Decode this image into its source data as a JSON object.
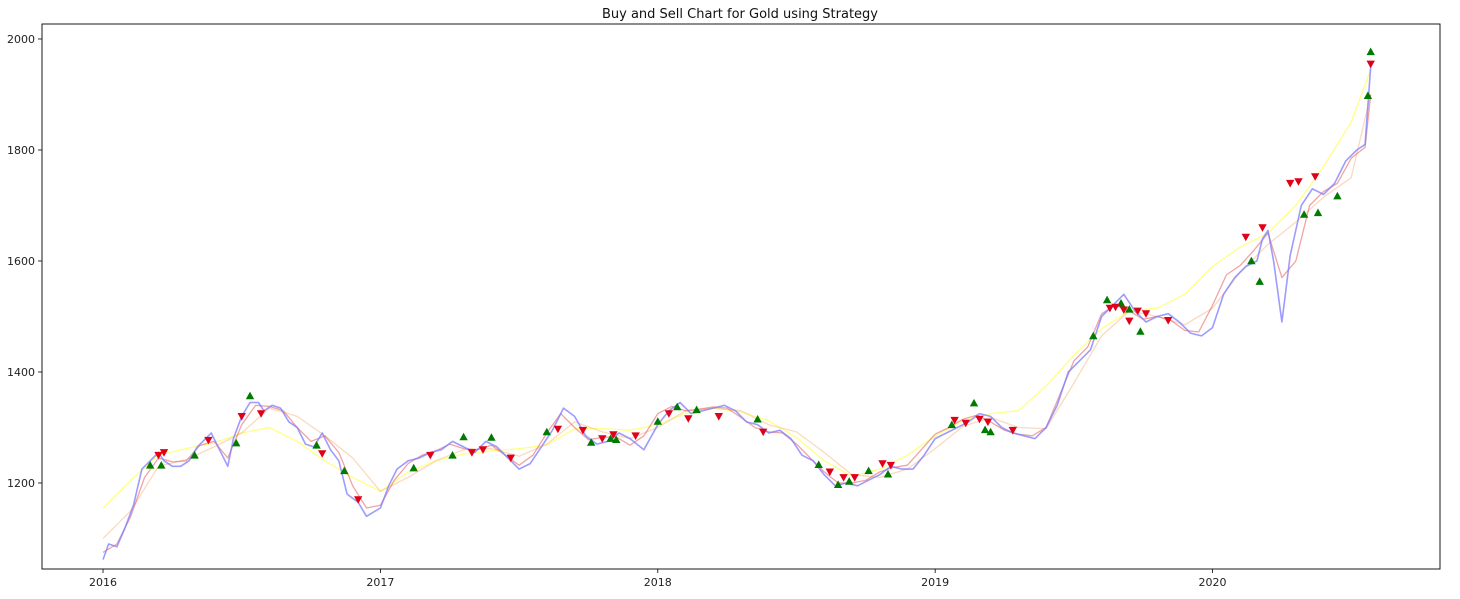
{
  "chart_data": {
    "type": "line",
    "title": "Buy and Sell Chart for Gold using Strategy",
    "xlabel": "",
    "ylabel": "",
    "xlim": [
      2015.78,
      2020.82
    ],
    "ylim": [
      1045,
      2027
    ],
    "xticks": [
      {
        "value": 2016,
        "label": "2016"
      },
      {
        "value": 2017,
        "label": "2017"
      },
      {
        "value": 2018,
        "label": "2018"
      },
      {
        "value": 2019,
        "label": "2019"
      },
      {
        "value": 2020,
        "label": "2020"
      }
    ],
    "yticks": [
      {
        "value": 1200,
        "label": "1200"
      },
      {
        "value": 1400,
        "label": "1400"
      },
      {
        "value": 1600,
        "label": "1600"
      },
      {
        "value": 1800,
        "label": "1800"
      },
      {
        "value": 2000,
        "label": "2000"
      }
    ],
    "grid": false,
    "legend": "none",
    "series": [
      {
        "key": "price",
        "color": "#7b7bff",
        "opacity": 0.75,
        "width": 1.6,
        "x": [
          2016.0,
          2016.02,
          2016.05,
          2016.08,
          2016.11,
          2016.14,
          2016.17,
          2016.2,
          2016.22,
          2016.25,
          2016.28,
          2016.31,
          2016.34,
          2016.37,
          2016.39,
          2016.42,
          2016.45,
          2016.47,
          2016.5,
          2016.53,
          2016.56,
          2016.58,
          2016.61,
          2016.64,
          2016.67,
          2016.7,
          2016.73,
          2016.76,
          2016.79,
          2016.82,
          2016.85,
          2016.88,
          2016.92,
          2016.95,
          2017.0,
          2017.03,
          2017.06,
          2017.1,
          2017.14,
          2017.18,
          2017.22,
          2017.26,
          2017.3,
          2017.34,
          2017.38,
          2017.42,
          2017.46,
          2017.5,
          2017.54,
          2017.58,
          2017.62,
          2017.66,
          2017.7,
          2017.74,
          2017.78,
          2017.82,
          2017.86,
          2017.9,
          2017.95,
          2018.0,
          2018.04,
          2018.08,
          2018.12,
          2018.16,
          2018.2,
          2018.24,
          2018.28,
          2018.32,
          2018.36,
          2018.4,
          2018.44,
          2018.48,
          2018.52,
          2018.56,
          2018.6,
          2018.64,
          2018.68,
          2018.72,
          2018.76,
          2018.8,
          2018.84,
          2018.88,
          2018.92,
          2018.96,
          2019.0,
          2019.04,
          2019.08,
          2019.12,
          2019.16,
          2019.2,
          2019.24,
          2019.28,
          2019.32,
          2019.36,
          2019.4,
          2019.44,
          2019.48,
          2019.52,
          2019.56,
          2019.6,
          2019.64,
          2019.68,
          2019.72,
          2019.76,
          2019.8,
          2019.84,
          2019.88,
          2019.92,
          2019.96,
          2020.0,
          2020.04,
          2020.08,
          2020.12,
          2020.16,
          2020.18,
          2020.2,
          2020.22,
          2020.25,
          2020.28,
          2020.32,
          2020.36,
          2020.4,
          2020.44,
          2020.48,
          2020.52,
          2020.55,
          2020.57
        ],
        "y": [
          1062,
          1090,
          1085,
          1120,
          1160,
          1225,
          1240,
          1255,
          1240,
          1230,
          1230,
          1240,
          1265,
          1280,
          1290,
          1260,
          1230,
          1280,
          1320,
          1345,
          1345,
          1330,
          1340,
          1335,
          1310,
          1300,
          1270,
          1265,
          1290,
          1260,
          1240,
          1180,
          1165,
          1140,
          1155,
          1195,
          1225,
          1240,
          1245,
          1255,
          1260,
          1275,
          1265,
          1255,
          1275,
          1265,
          1245,
          1225,
          1235,
          1265,
          1295,
          1335,
          1320,
          1285,
          1270,
          1275,
          1290,
          1280,
          1260,
          1305,
          1330,
          1345,
          1325,
          1330,
          1335,
          1340,
          1330,
          1310,
          1305,
          1290,
          1295,
          1280,
          1250,
          1240,
          1215,
          1195,
          1200,
          1195,
          1205,
          1215,
          1230,
          1225,
          1225,
          1250,
          1280,
          1290,
          1300,
          1310,
          1325,
          1320,
          1300,
          1290,
          1285,
          1280,
          1300,
          1340,
          1400,
          1420,
          1440,
          1500,
          1520,
          1540,
          1510,
          1490,
          1500,
          1505,
          1490,
          1470,
          1465,
          1480,
          1540,
          1570,
          1590,
          1600,
          1640,
          1655,
          1600,
          1490,
          1610,
          1700,
          1730,
          1720,
          1740,
          1780,
          1800,
          1810,
          1950
        ]
      },
      {
        "key": "ma-short",
        "color": "#e24a4a",
        "opacity": 0.5,
        "width": 1.3,
        "x": [
          2016.0,
          2016.05,
          2016.1,
          2016.15,
          2016.2,
          2016.25,
          2016.3,
          2016.35,
          2016.4,
          2016.45,
          2016.5,
          2016.55,
          2016.6,
          2016.65,
          2016.7,
          2016.75,
          2016.8,
          2016.85,
          2016.9,
          2016.95,
          2017.0,
          2017.05,
          2017.1,
          2017.15,
          2017.2,
          2017.25,
          2017.3,
          2017.35,
          2017.4,
          2017.45,
          2017.5,
          2017.55,
          2017.6,
          2017.65,
          2017.7,
          2017.75,
          2017.8,
          2017.85,
          2017.9,
          2017.95,
          2018.0,
          2018.05,
          2018.1,
          2018.15,
          2018.2,
          2018.25,
          2018.3,
          2018.35,
          2018.4,
          2018.45,
          2018.5,
          2018.55,
          2018.6,
          2018.65,
          2018.7,
          2018.75,
          2018.8,
          2018.85,
          2018.9,
          2018.95,
          2019.0,
          2019.05,
          2019.1,
          2019.15,
          2019.2,
          2019.25,
          2019.3,
          2019.35,
          2019.4,
          2019.45,
          2019.5,
          2019.55,
          2019.6,
          2019.65,
          2019.7,
          2019.75,
          2019.8,
          2019.85,
          2019.9,
          2019.95,
          2020.0,
          2020.05,
          2020.1,
          2020.15,
          2020.2,
          2020.25,
          2020.3,
          2020.35,
          2020.4,
          2020.45,
          2020.5,
          2020.55,
          2020.57
        ],
        "y": [
          1075,
          1090,
          1140,
          1210,
          1245,
          1238,
          1240,
          1268,
          1275,
          1245,
          1305,
          1340,
          1338,
          1330,
          1300,
          1275,
          1285,
          1255,
          1195,
          1155,
          1160,
          1205,
          1235,
          1250,
          1258,
          1270,
          1262,
          1260,
          1268,
          1250,
          1232,
          1250,
          1290,
          1325,
          1300,
          1278,
          1282,
          1283,
          1268,
          1285,
          1325,
          1338,
          1330,
          1333,
          1337,
          1335,
          1318,
          1300,
          1292,
          1290,
          1270,
          1245,
          1220,
          1200,
          1200,
          1205,
          1220,
          1228,
          1232,
          1260,
          1288,
          1300,
          1315,
          1322,
          1310,
          1295,
          1288,
          1285,
          1300,
          1360,
          1420,
          1445,
          1505,
          1520,
          1510,
          1495,
          1500,
          1493,
          1475,
          1472,
          1520,
          1575,
          1592,
          1620,
          1650,
          1570,
          1600,
          1700,
          1725,
          1740,
          1785,
          1805,
          1900
        ]
      },
      {
        "key": "ma-medium",
        "color": "#f5a060",
        "opacity": 0.4,
        "width": 1.3,
        "x": [
          2016.0,
          2016.1,
          2016.2,
          2016.3,
          2016.4,
          2016.5,
          2016.6,
          2016.7,
          2016.8,
          2016.9,
          2017.0,
          2017.1,
          2017.2,
          2017.3,
          2017.4,
          2017.5,
          2017.6,
          2017.7,
          2017.8,
          2017.9,
          2018.0,
          2018.1,
          2018.2,
          2018.3,
          2018.4,
          2018.5,
          2018.6,
          2018.7,
          2018.8,
          2018.9,
          2019.0,
          2019.1,
          2019.2,
          2019.3,
          2019.4,
          2019.5,
          2019.6,
          2019.7,
          2019.8,
          2019.9,
          2020.0,
          2020.1,
          2020.2,
          2020.3,
          2020.4,
          2020.5,
          2020.57
        ],
        "y": [
          1100,
          1150,
          1230,
          1242,
          1265,
          1290,
          1335,
          1320,
          1285,
          1245,
          1185,
          1210,
          1240,
          1260,
          1262,
          1248,
          1270,
          1310,
          1292,
          1280,
          1300,
          1330,
          1335,
          1330,
          1305,
          1292,
          1255,
          1215,
          1210,
          1225,
          1262,
          1302,
          1318,
          1300,
          1298,
          1380,
          1465,
          1510,
          1500,
          1485,
          1515,
          1580,
          1630,
          1670,
          1715,
          1750,
          1900
        ]
      },
      {
        "key": "ma-long",
        "color": "#ffff70",
        "opacity": 0.85,
        "width": 1.3,
        "x": [
          2016.0,
          2016.1,
          2016.2,
          2016.3,
          2016.4,
          2016.5,
          2016.6,
          2016.7,
          2016.8,
          2016.9,
          2017.0,
          2017.1,
          2017.2,
          2017.3,
          2017.4,
          2017.5,
          2017.6,
          2017.7,
          2017.8,
          2017.9,
          2018.0,
          2018.1,
          2018.2,
          2018.3,
          2018.4,
          2018.5,
          2018.6,
          2018.7,
          2018.8,
          2018.9,
          2019.0,
          2019.1,
          2019.2,
          2019.3,
          2019.4,
          2019.5,
          2019.6,
          2019.7,
          2019.8,
          2019.9,
          2020.0,
          2020.1,
          2020.2,
          2020.3,
          2020.4,
          2020.5,
          2020.57
        ],
        "y": [
          1155,
          1205,
          1250,
          1262,
          1272,
          1290,
          1300,
          1275,
          1240,
          1210,
          1185,
          1220,
          1240,
          1252,
          1258,
          1262,
          1268,
          1298,
          1298,
          1295,
          1305,
          1325,
          1335,
          1328,
          1312,
          1282,
          1240,
          1212,
          1225,
          1250,
          1285,
          1312,
          1325,
          1330,
          1375,
          1430,
          1478,
          1510,
          1515,
          1540,
          1590,
          1625,
          1650,
          1700,
          1770,
          1850,
          1945
        ]
      },
      {
        "key": "buy-signals",
        "type": "scatter",
        "marker": "triangle-up",
        "color": "#007a00",
        "x": [
          2016.17,
          2016.21,
          2016.33,
          2016.48,
          2016.53,
          2016.77,
          2016.87,
          2017.12,
          2017.26,
          2017.3,
          2017.4,
          2017.6,
          2017.76,
          2017.83,
          2017.85,
          2018.0,
          2018.07,
          2018.14,
          2018.36,
          2018.58,
          2018.65,
          2018.69,
          2018.76,
          2018.83,
          2019.06,
          2019.14,
          2019.18,
          2019.2,
          2019.57,
          2019.62,
          2019.67,
          2019.7,
          2019.74,
          2020.14,
          2020.17,
          2020.33,
          2020.38,
          2020.45,
          2020.56,
          2020.57
        ],
        "y": [
          1232,
          1232,
          1250,
          1272,
          1357,
          1268,
          1222,
          1227,
          1250,
          1283,
          1282,
          1292,
          1273,
          1280,
          1278,
          1311,
          1337,
          1332,
          1315,
          1233,
          1197,
          1203,
          1222,
          1216,
          1305,
          1344,
          1296,
          1292,
          1465,
          1530,
          1524,
          1513,
          1473,
          1600,
          1563,
          1684,
          1687,
          1717,
          1898,
          1977
        ]
      },
      {
        "key": "sell-signals",
        "type": "scatter",
        "marker": "triangle-down",
        "color": "#e0001a",
        "x": [
          2016.2,
          2016.22,
          2016.38,
          2016.5,
          2016.57,
          2016.79,
          2016.92,
          2017.18,
          2017.33,
          2017.37,
          2017.47,
          2017.64,
          2017.73,
          2017.8,
          2017.84,
          2017.92,
          2018.04,
          2018.11,
          2018.22,
          2018.38,
          2018.62,
          2018.67,
          2018.71,
          2018.81,
          2018.84,
          2019.07,
          2019.11,
          2019.16,
          2019.19,
          2019.28,
          2019.63,
          2019.65,
          2019.68,
          2019.7,
          2019.73,
          2019.76,
          2019.84,
          2020.12,
          2020.18,
          2020.28,
          2020.31,
          2020.37,
          2020.57
        ],
        "y": [
          1250,
          1255,
          1277,
          1320,
          1325,
          1253,
          1170,
          1250,
          1255,
          1260,
          1245,
          1297,
          1295,
          1280,
          1287,
          1285,
          1325,
          1316,
          1320,
          1292,
          1220,
          1210,
          1210,
          1235,
          1232,
          1313,
          1308,
          1315,
          1310,
          1295,
          1515,
          1517,
          1512,
          1492,
          1510,
          1505,
          1493,
          1643,
          1660,
          1740,
          1743,
          1752,
          1955
        ]
      }
    ]
  }
}
